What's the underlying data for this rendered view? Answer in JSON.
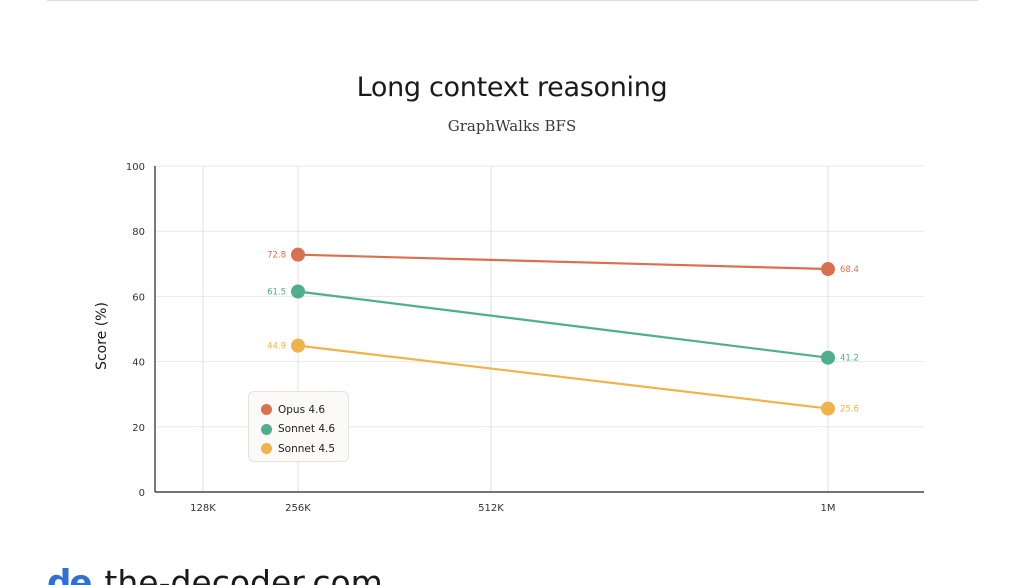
{
  "page": {
    "footer_logo": "de",
    "footer_text": "the-decoder.com"
  },
  "chart_data": {
    "type": "line",
    "title": "Long context reasoning",
    "subtitle": "GraphWalks BFS",
    "ylabel": "Score (%)",
    "xlabel": "",
    "ylim": [
      0,
      100
    ],
    "yticks": [
      "0",
      "20",
      "40",
      "60",
      "80",
      "100"
    ],
    "x_ticks": [
      "128K",
      "256K",
      "512K",
      "1M"
    ],
    "grid": true,
    "legend_position": "bottom-left",
    "series": [
      {
        "name": "Opus 4.6",
        "color": "#d9704f",
        "x": [
          "256K",
          "1M"
        ],
        "values": [
          72.8,
          68.4
        ],
        "labels": [
          "72.8",
          "68.4"
        ]
      },
      {
        "name": "Sonnet 4.6",
        "color": "#4fae8e",
        "x": [
          "256K",
          "1M"
        ],
        "values": [
          61.5,
          41.2
        ],
        "labels": [
          "61.5",
          "41.2"
        ]
      },
      {
        "name": "Sonnet 4.5",
        "color": "#f0b24a",
        "x": [
          "256K",
          "1M"
        ],
        "values": [
          44.9,
          25.6
        ],
        "labels": [
          "44.9",
          "25.6"
        ]
      }
    ]
  }
}
